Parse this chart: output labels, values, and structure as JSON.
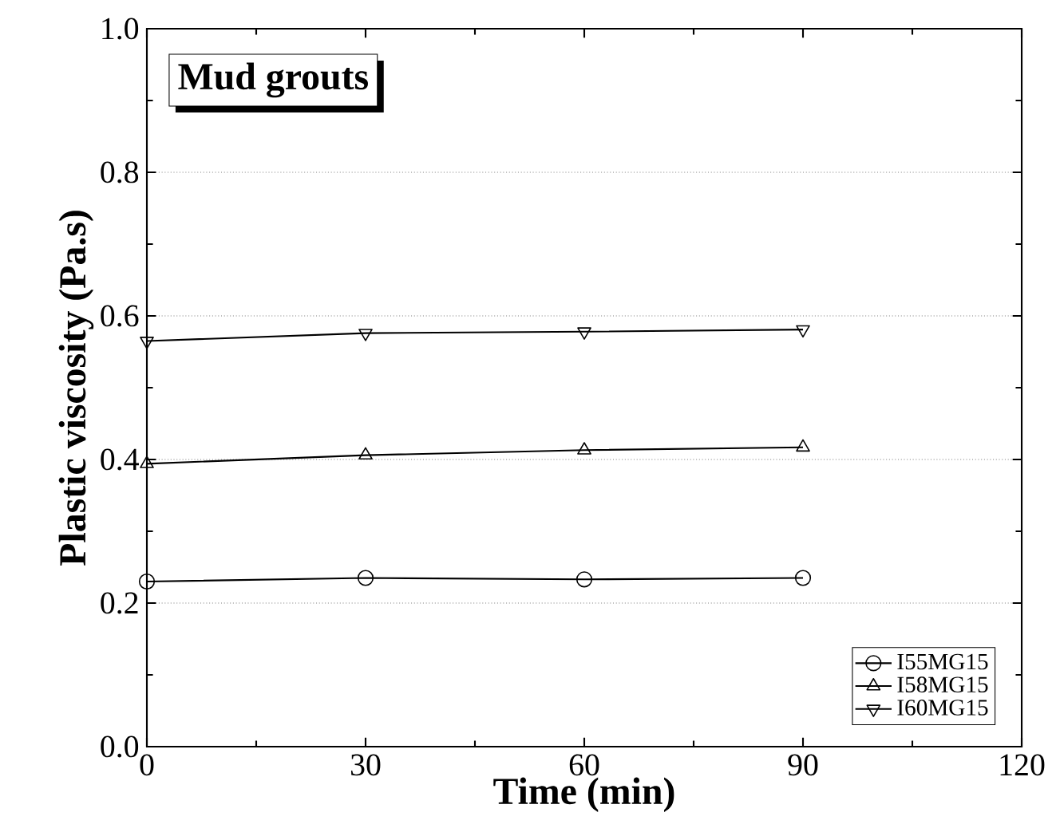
{
  "chart_data": {
    "type": "line",
    "title": "Mud grouts",
    "xlabel": "Time (min)",
    "ylabel": "Plastic viscosity (Pa.s)",
    "x": [
      0,
      30,
      60,
      90
    ],
    "series": [
      {
        "name": "I55MG15",
        "color": "#000000",
        "marker": "circle",
        "values": [
          0.23,
          0.235,
          0.233,
          0.235
        ]
      },
      {
        "name": "I58MG15",
        "color": "#000000",
        "marker": "triangle",
        "values": [
          0.394,
          0.406,
          0.413,
          0.417
        ]
      },
      {
        "name": "I60MG15",
        "color": "#000000",
        "marker": "triangle-down",
        "values": [
          0.565,
          0.576,
          0.578,
          0.581
        ]
      }
    ],
    "xlim": [
      0,
      120
    ],
    "xticks": [
      0,
      30,
      60,
      90,
      120
    ],
    "ylim": [
      0,
      1.0
    ],
    "yticks": [
      {
        "value": 0,
        "label": "0.0"
      },
      {
        "value": 0.2,
        "label": "0.2"
      },
      {
        "value": 0.4,
        "label": "0.4"
      },
      {
        "value": 0.6,
        "label": "0.6"
      },
      {
        "value": 0.8,
        "label": "0.8"
      },
      {
        "value": 1.0,
        "label": "1.0"
      }
    ],
    "grid": "y",
    "legend": "bottom right",
    "line_style": "solid"
  }
}
